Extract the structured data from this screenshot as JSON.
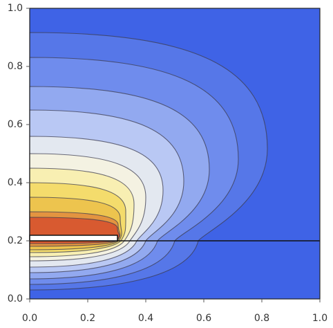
{
  "chart_data": {
    "type": "contour",
    "xlim": [
      0,
      1
    ],
    "ylim": [
      0,
      1
    ],
    "xticks": [
      {
        "value": 0,
        "label": "0.0"
      },
      0.2,
      0.4,
      0.6,
      0.8,
      {
        "value": 1,
        "label": "1.0"
      }
    ],
    "yticks": [
      {
        "value": 0,
        "label": "0.0"
      },
      0.2,
      0.4,
      0.6,
      0.8,
      {
        "value": 1,
        "label": "1.0"
      }
    ]
  }
}
